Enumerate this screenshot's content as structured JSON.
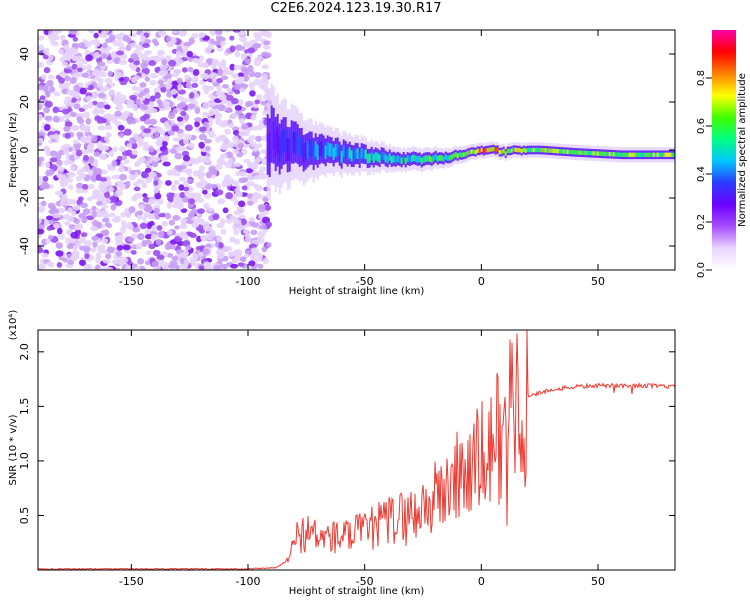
{
  "title": "C2E6.2024.123.19.30.R17",
  "colors": {
    "snr_line": "#ee3a32",
    "colormap": [
      "#ffffff",
      "#e8d4ff",
      "#a64dff",
      "#6a00ff",
      "#2a3cff",
      "#00c8ff",
      "#00ff80",
      "#40ff00",
      "#ffff00",
      "#ff8000",
      "#ff0000",
      "#ff00aa"
    ]
  },
  "chart_data": [
    {
      "type": "heatmap",
      "description": "spectrogram of normalized spectral amplitude vs height",
      "xlabel": "Height of straight line (km)",
      "ylabel": "Frequency (Hz)",
      "xlim": [
        -190,
        83
      ],
      "ylim": [
        -50,
        50
      ],
      "xticks": [
        -150,
        -100,
        -50,
        0,
        50
      ],
      "yticks": [
        -40,
        -20,
        0,
        20,
        40
      ],
      "noise_region_x": [
        -190,
        -92
      ],
      "noise_amplitude": 0.1,
      "ridge": {
        "x": [
          -92,
          -85,
          -75,
          -65,
          -55,
          -45,
          -35,
          -25,
          -15,
          -5,
          0,
          5,
          10,
          15,
          25,
          40,
          60,
          83
        ],
        "center_freq": [
          4,
          2,
          0,
          -1,
          -2,
          -3,
          -4,
          -4,
          -3,
          -1,
          0,
          0,
          -1,
          0,
          0,
          -1,
          -2,
          -2
        ],
        "width": [
          14,
          11,
          8,
          6,
          5,
          4,
          3,
          3,
          2.5,
          2,
          2,
          2,
          2,
          2,
          2,
          2,
          2,
          2
        ],
        "amplitude": [
          0.3,
          0.35,
          0.4,
          0.45,
          0.5,
          0.55,
          0.55,
          0.6,
          0.65,
          0.75,
          0.95,
          0.85,
          0.7,
          0.7,
          0.72,
          0.7,
          0.68,
          0.68
        ]
      }
    },
    {
      "type": "line",
      "xlabel": "Height of straight line (km)",
      "ylabel": "SNR (10 * v/v)",
      "yscale_note": "(x10⁴)",
      "xlim": [
        -190,
        83
      ],
      "ylim": [
        0,
        2.2
      ],
      "xticks": [
        -150,
        -100,
        -50,
        0,
        50
      ],
      "yticks": [
        0.5,
        1.0,
        1.5,
        2.0
      ],
      "series": [
        {
          "x": [
            -190,
            -150,
            -100,
            -88,
            -82,
            -80,
            -75,
            -70,
            -60,
            -50,
            -40,
            -30,
            -20,
            -10,
            0,
            5,
            9,
            10,
            11,
            12,
            15,
            20,
            30,
            40,
            50,
            60,
            70,
            83
          ],
          "values": [
            0.01,
            0.01,
            0.01,
            0.02,
            0.1,
            0.3,
            0.35,
            0.3,
            0.3,
            0.35,
            0.45,
            0.5,
            0.65,
            0.85,
            1.0,
            1.1,
            1.35,
            2.2,
            0.3,
            1.5,
            1.6,
            1.6,
            1.65,
            1.68,
            1.69,
            1.69,
            1.69,
            1.68
          ]
        }
      ]
    },
    {
      "type": "colorbar",
      "label": "Normalized spectral amplitude",
      "range": [
        0,
        1
      ],
      "ticks": [
        "0.0",
        "0.2",
        "0.4",
        "0.6",
        "0.8"
      ]
    }
  ]
}
